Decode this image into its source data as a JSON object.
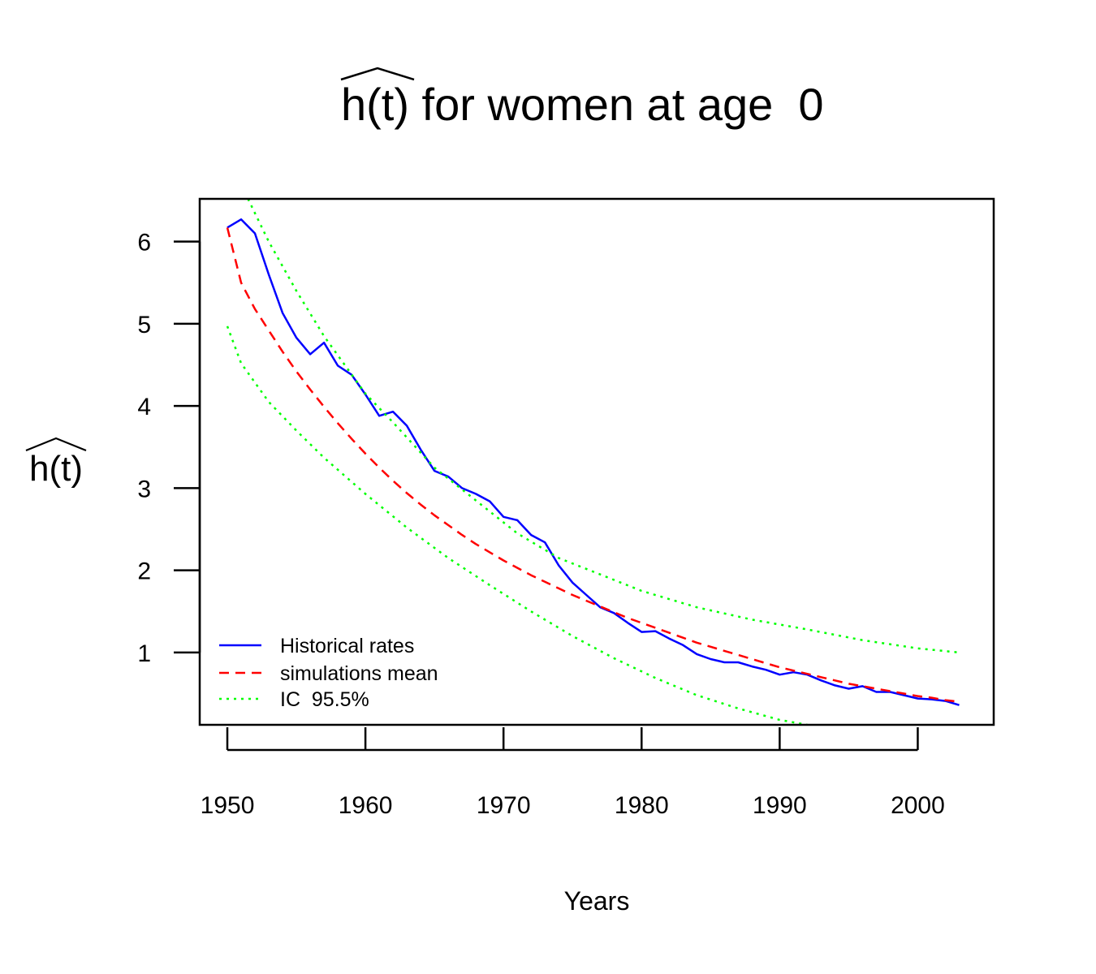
{
  "chart_data": {
    "type": "line",
    "title": "h(t) for women at age  0",
    "title_hat_text": "h(t)",
    "title_rest": " for women at age  0",
    "xlabel": "Years",
    "ylabel": "h(t)",
    "xlim": [
      1948,
      2005.5
    ],
    "ylim": [
      0.12,
      6.52
    ],
    "x_ticks": [
      1950,
      1960,
      1970,
      1980,
      1990,
      2000
    ],
    "y_ticks": [
      1,
      2,
      3,
      4,
      5,
      6
    ],
    "grid": false,
    "legend_position": "bottom-left",
    "series": [
      {
        "name": "Historical rates",
        "style": "solid",
        "color": "#0000ff",
        "points": [
          [
            1950,
            6.17
          ],
          [
            1951,
            6.27
          ],
          [
            1952,
            6.1
          ],
          [
            1953,
            5.6
          ],
          [
            1954,
            5.13
          ],
          [
            1955,
            4.83
          ],
          [
            1956,
            4.63
          ],
          [
            1957,
            4.77
          ],
          [
            1958,
            4.49
          ],
          [
            1959,
            4.38
          ],
          [
            1960,
            4.14
          ],
          [
            1961,
            3.88
          ],
          [
            1962,
            3.93
          ],
          [
            1963,
            3.76
          ],
          [
            1964,
            3.47
          ],
          [
            1965,
            3.21
          ],
          [
            1966,
            3.14
          ],
          [
            1967,
            3.0
          ],
          [
            1968,
            2.93
          ],
          [
            1969,
            2.84
          ],
          [
            1970,
            2.65
          ],
          [
            1971,
            2.61
          ],
          [
            1972,
            2.43
          ],
          [
            1973,
            2.34
          ],
          [
            1974,
            2.06
          ],
          [
            1975,
            1.85
          ],
          [
            1976,
            1.7
          ],
          [
            1977,
            1.55
          ],
          [
            1978,
            1.48
          ],
          [
            1979,
            1.36
          ],
          [
            1980,
            1.25
          ],
          [
            1981,
            1.26
          ],
          [
            1982,
            1.17
          ],
          [
            1983,
            1.09
          ],
          [
            1984,
            0.98
          ],
          [
            1985,
            0.92
          ],
          [
            1986,
            0.88
          ],
          [
            1987,
            0.88
          ],
          [
            1988,
            0.83
          ],
          [
            1989,
            0.79
          ],
          [
            1990,
            0.73
          ],
          [
            1991,
            0.76
          ],
          [
            1992,
            0.73
          ],
          [
            1993,
            0.66
          ],
          [
            1994,
            0.6
          ],
          [
            1995,
            0.56
          ],
          [
            1996,
            0.59
          ],
          [
            1997,
            0.52
          ],
          [
            1998,
            0.52
          ],
          [
            1999,
            0.48
          ],
          [
            2000,
            0.44
          ],
          [
            2001,
            0.43
          ],
          [
            2002,
            0.41
          ],
          [
            2003,
            0.36
          ]
        ]
      },
      {
        "name": "simulations mean",
        "style": "dashed",
        "color": "#ff0000",
        "points": [
          [
            1950,
            6.17
          ],
          [
            1951,
            5.5
          ],
          [
            1952,
            5.18
          ],
          [
            1953,
            4.92
          ],
          [
            1954,
            4.66
          ],
          [
            1955,
            4.42
          ],
          [
            1956,
            4.2
          ],
          [
            1957,
            3.99
          ],
          [
            1958,
            3.79
          ],
          [
            1959,
            3.6
          ],
          [
            1960,
            3.42
          ],
          [
            1961,
            3.25
          ],
          [
            1962,
            3.09
          ],
          [
            1963,
            2.94
          ],
          [
            1964,
            2.8
          ],
          [
            1965,
            2.67
          ],
          [
            1966,
            2.55
          ],
          [
            1967,
            2.43
          ],
          [
            1968,
            2.32
          ],
          [
            1969,
            2.22
          ],
          [
            1970,
            2.12
          ],
          [
            1971,
            2.03
          ],
          [
            1972,
            1.94
          ],
          [
            1973,
            1.86
          ],
          [
            1974,
            1.78
          ],
          [
            1975,
            1.7
          ],
          [
            1976,
            1.63
          ],
          [
            1977,
            1.56
          ],
          [
            1978,
            1.49
          ],
          [
            1979,
            1.42
          ],
          [
            1980,
            1.36
          ],
          [
            1981,
            1.3
          ],
          [
            1982,
            1.24
          ],
          [
            1983,
            1.18
          ],
          [
            1984,
            1.12
          ],
          [
            1985,
            1.07
          ],
          [
            1986,
            1.02
          ],
          [
            1987,
            0.97
          ],
          [
            1988,
            0.92
          ],
          [
            1989,
            0.87
          ],
          [
            1990,
            0.82
          ],
          [
            1991,
            0.78
          ],
          [
            1992,
            0.74
          ],
          [
            1993,
            0.7
          ],
          [
            1994,
            0.66
          ],
          [
            1995,
            0.62
          ],
          [
            1996,
            0.59
          ],
          [
            1997,
            0.56
          ],
          [
            1998,
            0.53
          ],
          [
            1999,
            0.5
          ],
          [
            2000,
            0.47
          ],
          [
            2001,
            0.45
          ],
          [
            2002,
            0.42
          ],
          [
            2003,
            0.4
          ]
        ]
      },
      {
        "name": "IC  95.5%",
        "style": "dotted",
        "color": "#00ff00",
        "points": [
          [
            1951.5,
            6.52
          ],
          [
            1953,
            6.0
          ],
          [
            1955,
            5.4
          ],
          [
            1957,
            4.85
          ],
          [
            1960,
            4.15
          ],
          [
            1962,
            3.8
          ],
          [
            1965,
            3.25
          ],
          [
            1968,
            2.85
          ],
          [
            1971,
            2.45
          ],
          [
            1974,
            2.15
          ],
          [
            1977,
            1.95
          ],
          [
            1980,
            1.75
          ],
          [
            1984,
            1.55
          ],
          [
            1988,
            1.4
          ],
          [
            1992,
            1.28
          ],
          [
            1996,
            1.15
          ],
          [
            2000,
            1.05
          ],
          [
            2003,
            1.0
          ]
        ]
      },
      {
        "style": "dotted",
        "color": "#00ff00",
        "points": [
          [
            1950,
            4.97
          ],
          [
            1951,
            4.52
          ],
          [
            1953,
            4.05
          ],
          [
            1955,
            3.7
          ],
          [
            1957,
            3.37
          ],
          [
            1960,
            2.93
          ],
          [
            1963,
            2.52
          ],
          [
            1966,
            2.15
          ],
          [
            1969,
            1.82
          ],
          [
            1972,
            1.5
          ],
          [
            1975,
            1.2
          ],
          [
            1978,
            0.93
          ],
          [
            1981,
            0.69
          ],
          [
            1984,
            0.48
          ],
          [
            1987,
            0.32
          ],
          [
            1990,
            0.18
          ],
          [
            1992,
            0.12
          ]
        ]
      }
    ]
  }
}
